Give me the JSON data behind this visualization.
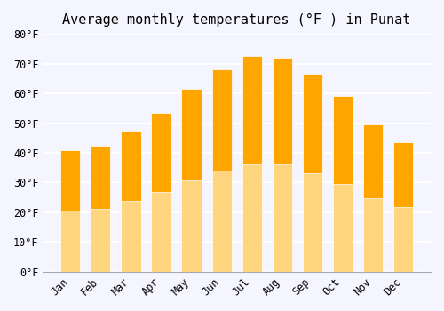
{
  "title": "Average monthly temperatures (°F ) in Punat",
  "months": [
    "Jan",
    "Feb",
    "Mar",
    "Apr",
    "May",
    "Jun",
    "Jul",
    "Aug",
    "Sep",
    "Oct",
    "Nov",
    "Dec"
  ],
  "values": [
    41,
    42.5,
    47.5,
    53.5,
    61.5,
    68,
    72.5,
    72,
    66.5,
    59,
    49.5,
    43.5
  ],
  "bar_color_top": "#FFA500",
  "bar_color_bottom": "#FFD580",
  "bar_edge_color": "#FFA500",
  "background_color": "#f5f5ff",
  "grid_color": "#ffffff",
  "ylim": [
    0,
    80
  ],
  "ytick_step": 10,
  "title_fontsize": 11,
  "tick_fontsize": 8.5,
  "font_family": "monospace"
}
